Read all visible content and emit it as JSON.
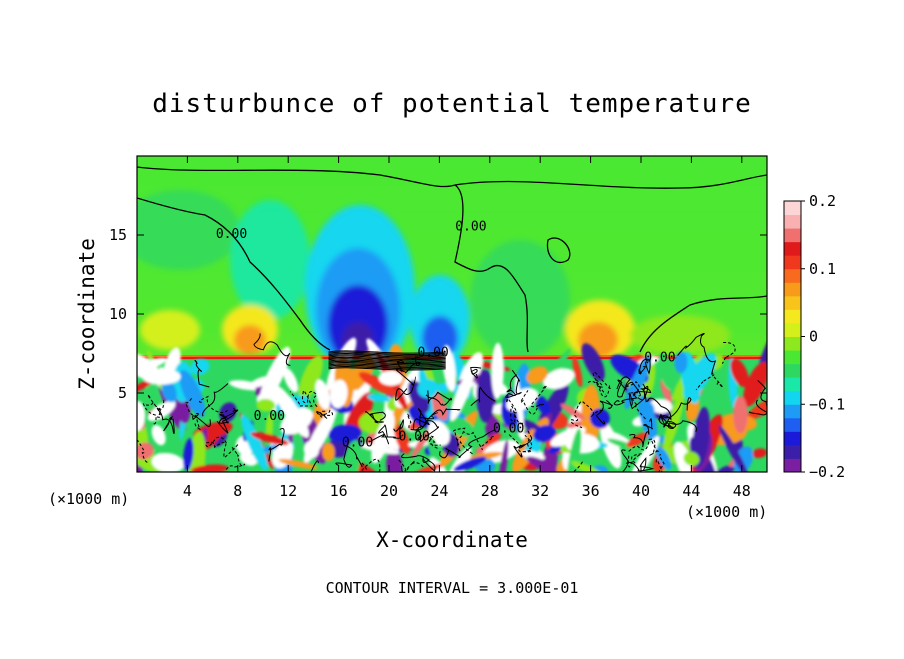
{
  "chart_data": {
    "type": "heatmap",
    "title": "disturbunce of potential temperature",
    "xlabel": "X-coordinate",
    "ylabel": "Z-coordinate",
    "x_unit": "(×1000 m)",
    "y_unit": "(×1000 m)",
    "xlim": [
      0,
      50
    ],
    "ylim": [
      0,
      20
    ],
    "x_ticks": [
      4,
      8,
      12,
      16,
      20,
      24,
      28,
      32,
      36,
      40,
      44,
      48
    ],
    "y_ticks": [
      5,
      10,
      15
    ],
    "colorbar": {
      "range": [
        -0.2,
        0.2
      ],
      "ticks": [
        {
          "value": 0.2,
          "label": "0.2"
        },
        {
          "value": 0.1,
          "label": "0.1"
        },
        {
          "value": 0,
          "label": "0"
        },
        {
          "value": -0.1,
          "label": "-0.1"
        },
        {
          "value": -0.2,
          "label": "-0.2"
        }
      ],
      "colors": [
        "#7a1fa2",
        "#3c1fa8",
        "#1a1ad8",
        "#1e5ef0",
        "#1e9cf5",
        "#12d6f0",
        "#1ae8a8",
        "#2ed860",
        "#4ae832",
        "#8ee81e",
        "#d4f01a",
        "#f4e81e",
        "#f8c41c",
        "#f89a1a",
        "#f86a1e",
        "#f0381e",
        "#e01a1a",
        "#f07070",
        "#f8b0b0",
        "#fcd6d6"
      ]
    },
    "contour_labels": [
      {
        "x": 7.5,
        "y": 14.8,
        "text": "0.00"
      },
      {
        "x": 26.5,
        "y": 15.3,
        "text": "0.00"
      },
      {
        "x": 23.5,
        "y": 7.3,
        "text": "0.00"
      },
      {
        "x": 41.5,
        "y": 7.0,
        "text": "0.00"
      },
      {
        "x": 10.5,
        "y": 3.3,
        "text": "0.00"
      },
      {
        "x": 17.5,
        "y": 1.6,
        "text": "0.00"
      },
      {
        "x": 22.0,
        "y": 2.0,
        "text": "0.00"
      },
      {
        "x": 29.5,
        "y": 2.5,
        "text": "0.00"
      }
    ],
    "contour_interval": "CONTOUR INTERVAL = 3.000E-01"
  }
}
